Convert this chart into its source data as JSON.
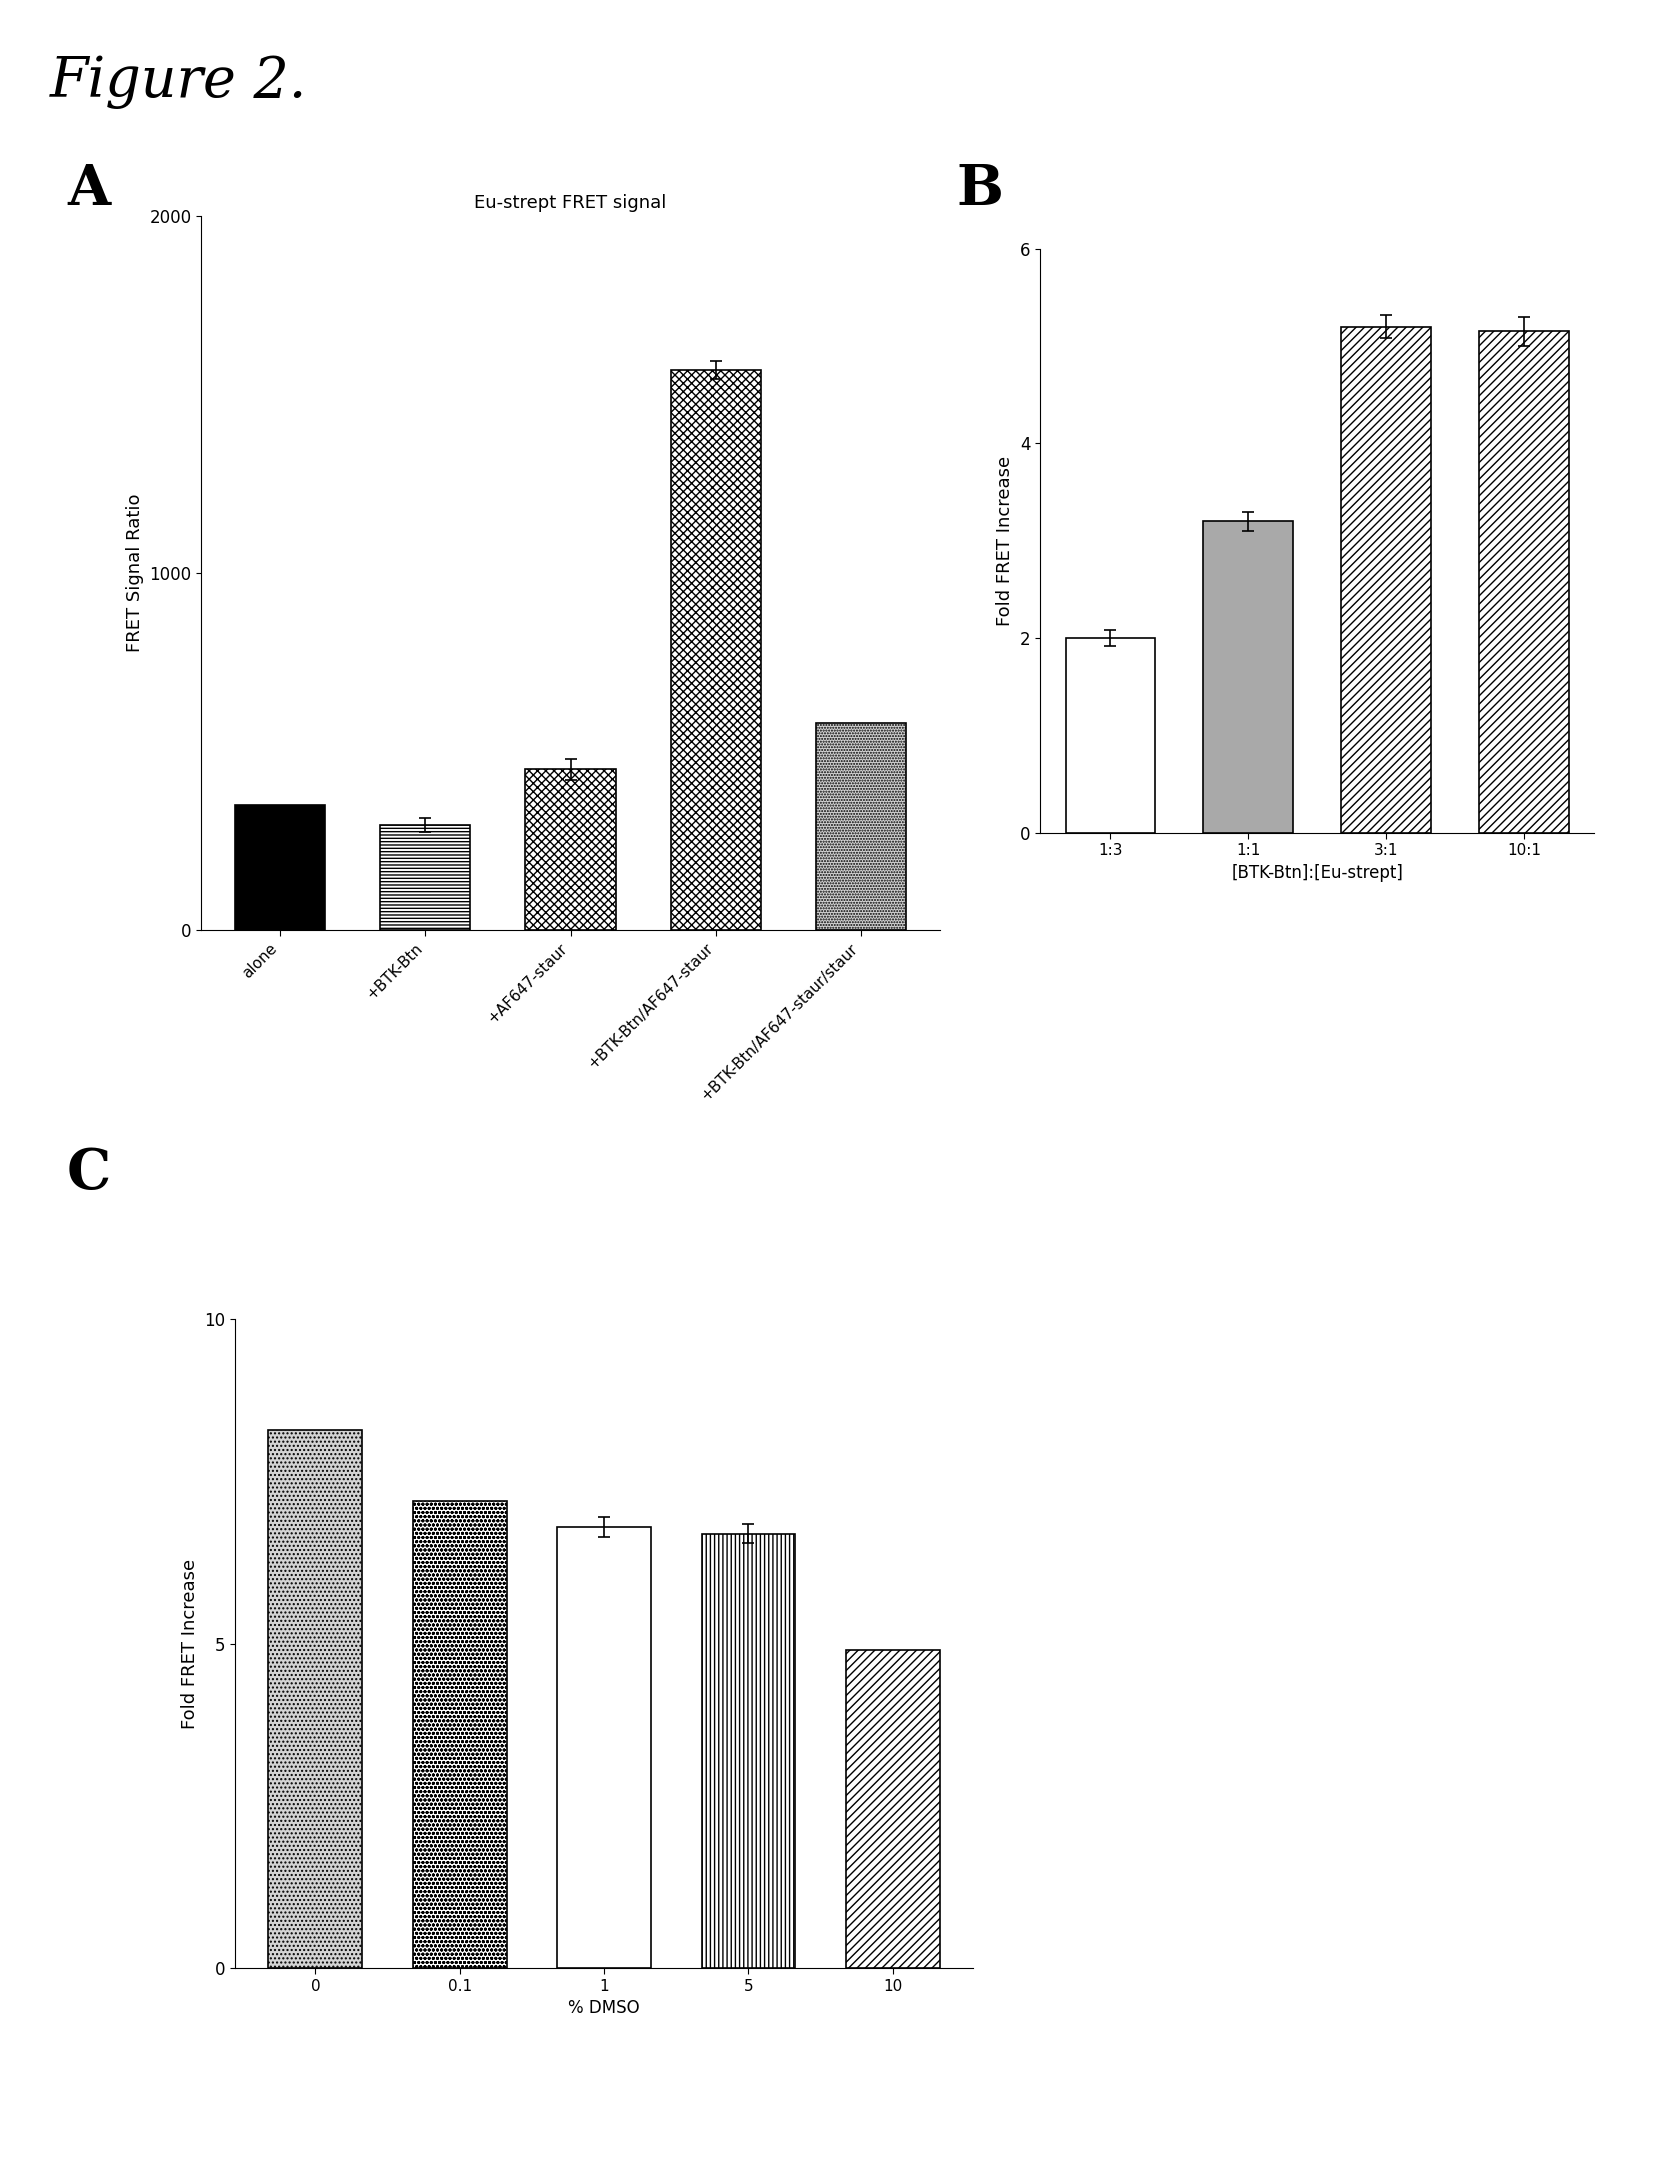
{
  "figure_title": "Figure 2.",
  "panel_A": {
    "title": "Eu-strept FRET signal",
    "ylabel": "FRET Signal Ratio",
    "ylim": [
      0,
      2000
    ],
    "yticks": [
      0,
      1000,
      2000
    ],
    "categories": [
      "alone",
      "+BTK-Btn",
      "+AF647-staur",
      "+BTK-Btn/AF647-staur",
      "+BTK-Btn/AF647-staur/staur"
    ],
    "values": [
      350,
      295,
      450,
      1570,
      580
    ],
    "errors": [
      0,
      20,
      30,
      25,
      0
    ]
  },
  "panel_B": {
    "ylabel": "Fold FRET Increase",
    "xlabel": "[BTK-Btn]:[Eu-strept]",
    "ylim": [
      0,
      6
    ],
    "yticks": [
      0,
      2,
      4,
      6
    ],
    "categories": [
      "1:3",
      "1:1",
      "3:1",
      "10:1"
    ],
    "values": [
      2.0,
      3.2,
      5.2,
      5.15
    ],
    "errors": [
      0.08,
      0.1,
      0.12,
      0.15
    ]
  },
  "panel_C": {
    "ylabel": "Fold FRET Increase",
    "xlabel": "% DMSO",
    "ylim": [
      0,
      10
    ],
    "yticks": [
      0,
      5,
      10
    ],
    "categories": [
      "0",
      "0.1",
      "1",
      "5",
      "10"
    ],
    "values": [
      8.3,
      7.2,
      6.8,
      6.7,
      4.9
    ],
    "errors": [
      0,
      0,
      0.15,
      0.15,
      0
    ]
  }
}
